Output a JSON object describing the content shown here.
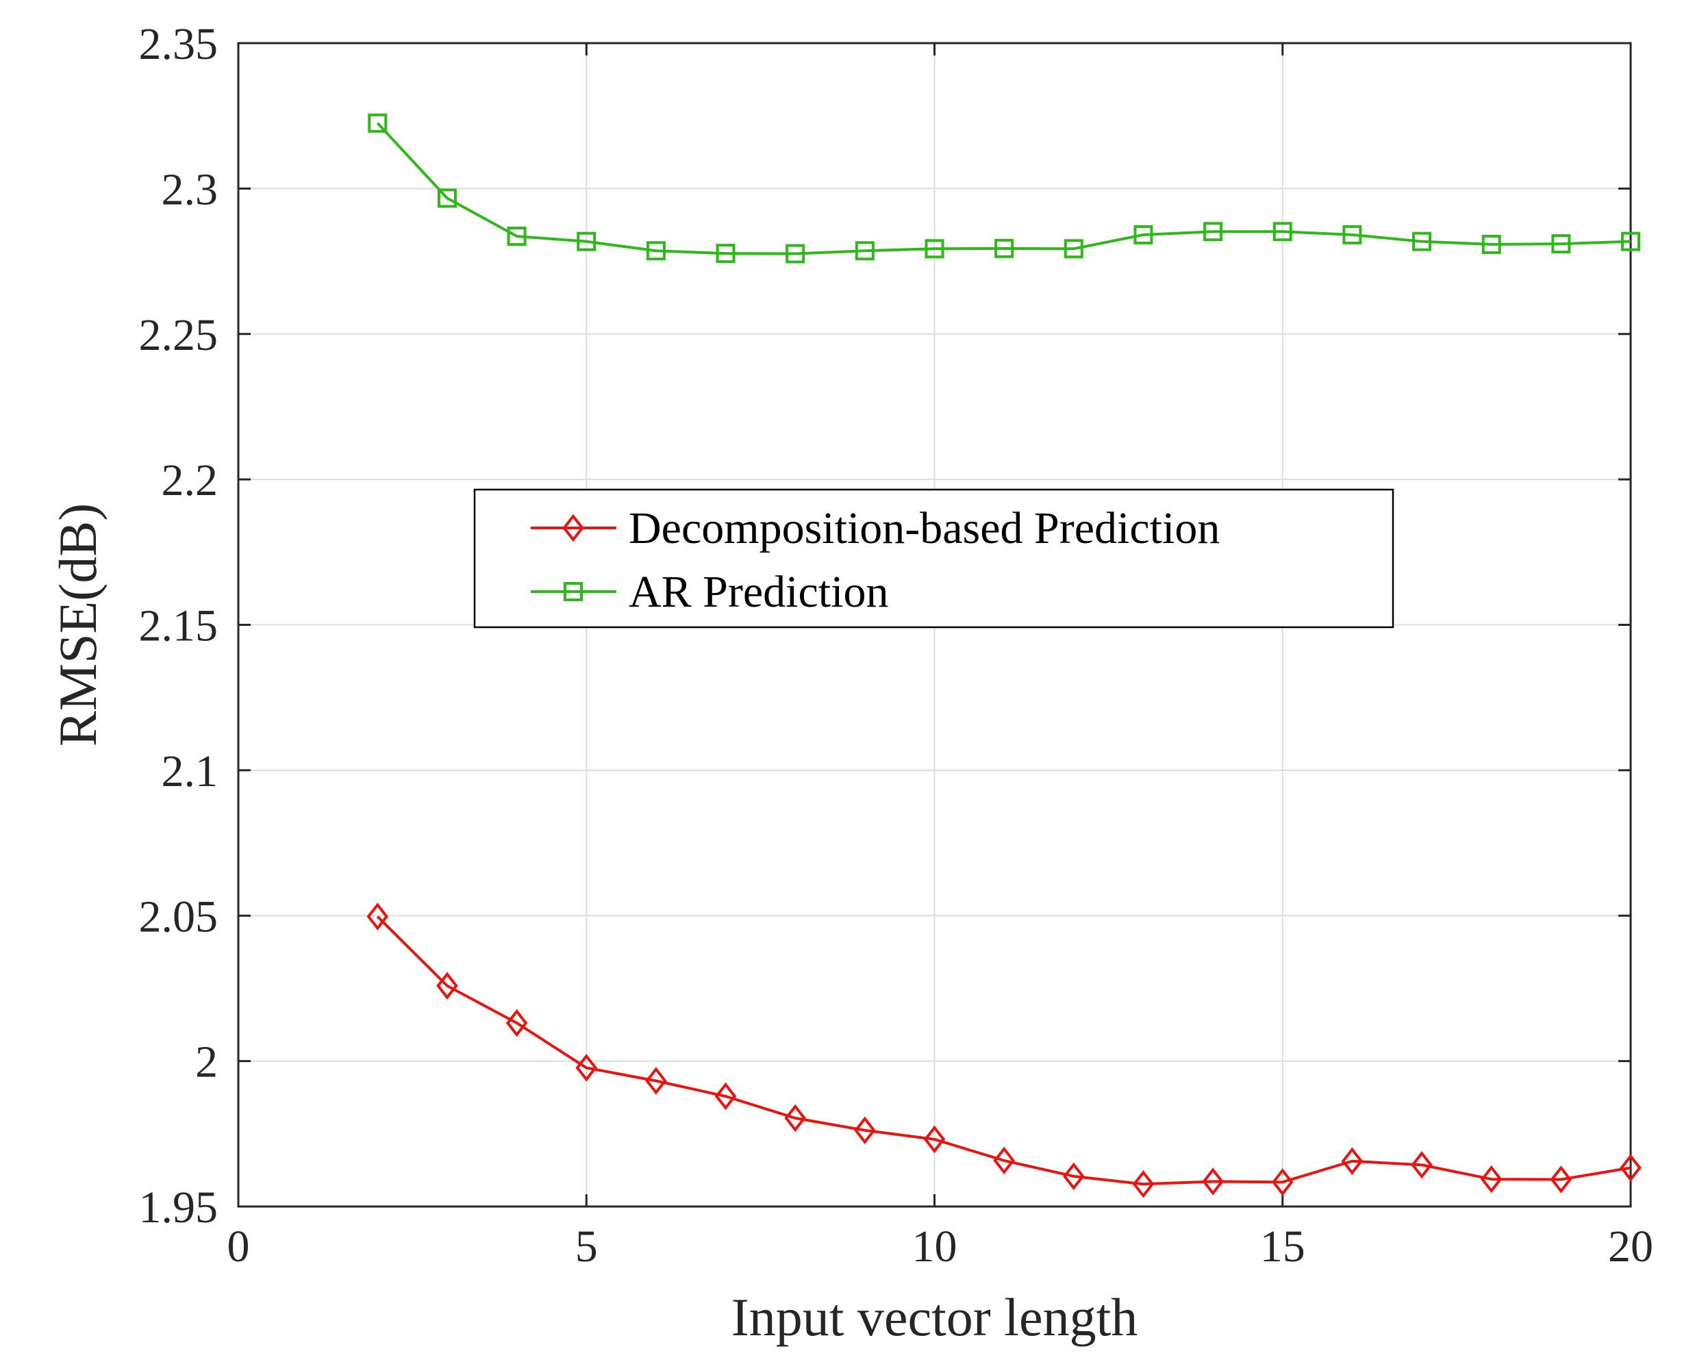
{
  "chart_data": {
    "type": "line",
    "title": "",
    "xlabel": "Input vector length",
    "ylabel": "RMSE(dB)",
    "xlim": [
      0,
      20
    ],
    "ylim": [
      1.95,
      2.35
    ],
    "xticks": [
      0,
      5,
      10,
      15,
      20
    ],
    "xtick_labels": [
      "0",
      "5",
      "10",
      "15",
      "20"
    ],
    "yticks": [
      1.95,
      2.0,
      2.05,
      2.1,
      2.15,
      2.2,
      2.25,
      2.3,
      2.35
    ],
    "ytick_labels": [
      "1.95",
      "2",
      "2.05",
      "2.1",
      "2.15",
      "2.2",
      "2.25",
      "2.3",
      "2.35"
    ],
    "grid": true,
    "legend_position": "center",
    "x": [
      2,
      3,
      4,
      5,
      6,
      7,
      8,
      9,
      10,
      11,
      12,
      13,
      14,
      15,
      16,
      17,
      18,
      19,
      20
    ],
    "series": [
      {
        "name": "Decomposition-based Prediction",
        "color": "#e8140f",
        "marker": "diamond",
        "values": [
          2.0497,
          2.0259,
          2.0131,
          1.9977,
          1.9932,
          1.9879,
          1.9804,
          1.9762,
          1.9731,
          1.9658,
          1.9604,
          1.9577,
          1.9586,
          1.9584,
          1.9656,
          1.9643,
          1.9594,
          1.9593,
          1.9633
        ]
      },
      {
        "name": "AR Prediction",
        "color": "#2eb81a",
        "marker": "square",
        "values": [
          2.3225,
          2.2967,
          2.2836,
          2.2818,
          2.2786,
          2.2777,
          2.2776,
          2.2786,
          2.2793,
          2.2794,
          2.2793,
          2.2841,
          2.2852,
          2.2852,
          2.2841,
          2.2818,
          2.2808,
          2.281,
          2.2818
        ]
      }
    ]
  }
}
